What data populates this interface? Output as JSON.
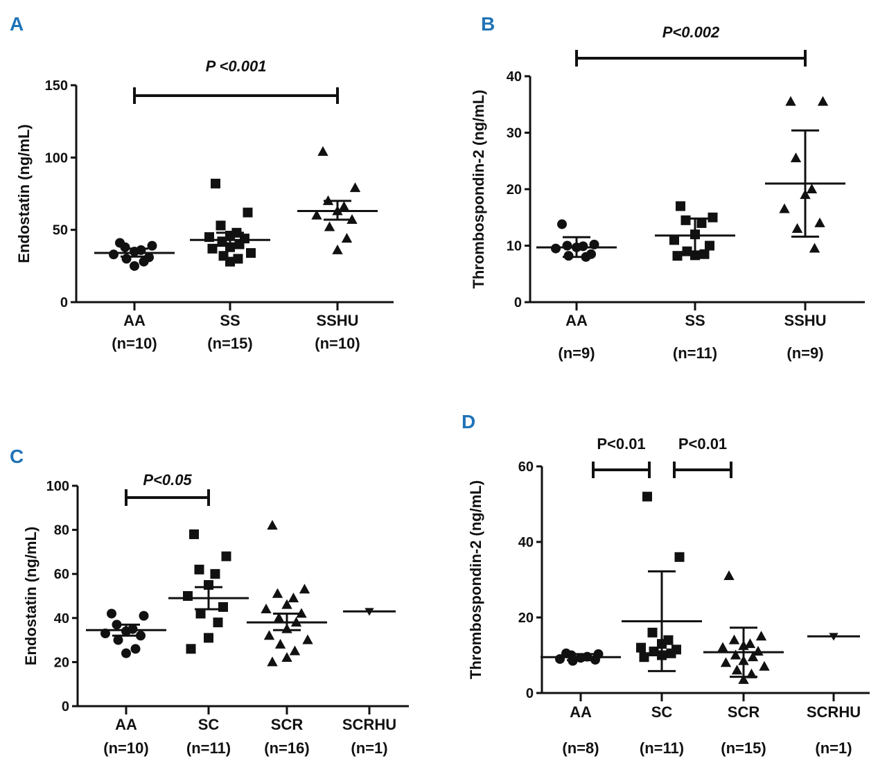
{
  "colors": {
    "ink": "#111111",
    "panel_letter": "#1f73b7"
  },
  "chart_data": [
    {
      "panel": "A",
      "type": "scatter",
      "ylabel": "Endostatin (ng/mL)",
      "ylim": [
        0,
        150
      ],
      "yticks": [
        0,
        50,
        100,
        150
      ],
      "significance": [
        {
          "from": 0,
          "to": 2,
          "label": "P <0.001",
          "italic": true
        }
      ],
      "groups": [
        {
          "name": "AA",
          "n": "(n=10)",
          "marker": "circle",
          "mean": 34,
          "err_low": 31.5,
          "err_high": 37,
          "values": [
            41,
            39,
            38,
            36,
            35,
            33,
            31,
            30,
            28,
            25
          ]
        },
        {
          "name": "SS",
          "n": "(n=15)",
          "marker": "square",
          "mean": 43,
          "err_low": 39,
          "err_high": 48,
          "values": [
            82,
            62,
            53,
            48,
            46,
            45,
            44,
            42,
            40,
            38,
            37,
            34,
            32,
            30,
            28
          ]
        },
        {
          "name": "SSHU",
          "n": "(n=10)",
          "marker": "triangle",
          "mean": 63,
          "err_low": 57,
          "err_high": 70,
          "values": [
            104,
            79,
            70,
            66,
            63,
            60,
            57,
            52,
            44,
            36
          ]
        }
      ]
    },
    {
      "panel": "B",
      "type": "scatter",
      "ylabel": "Thrombospondin-2 (ng/mL)",
      "ylim": [
        0,
        40
      ],
      "yticks": [
        0,
        10,
        20,
        30,
        40
      ],
      "significance": [
        {
          "from": 0,
          "to": 2,
          "label": "P<0.002",
          "italic": true
        }
      ],
      "groups": [
        {
          "name": "AA",
          "n": "(n=9)",
          "marker": "circle",
          "mean": 9.7,
          "err_low": 8.0,
          "err_high": 11.5,
          "values": [
            13.8,
            10.2,
            10.0,
            9.9,
            9.7,
            9.5,
            8.5,
            8.2,
            8.0
          ]
        },
        {
          "name": "SS",
          "n": "(n=11)",
          "marker": "square",
          "mean": 11.8,
          "err_low": 8.8,
          "err_high": 14.8,
          "values": [
            17.0,
            15.0,
            14.5,
            14.0,
            12.0,
            11.0,
            10.0,
            9.0,
            8.5,
            8.3,
            8.2
          ]
        },
        {
          "name": "SSHU",
          "n": "(n=9)",
          "marker": "triangle",
          "mean": 21.0,
          "err_low": 11.6,
          "err_high": 30.4,
          "values": [
            35.5,
            35.5,
            25.5,
            20.0,
            19.0,
            16.5,
            14.0,
            13.0,
            9.5
          ]
        }
      ]
    },
    {
      "panel": "C",
      "type": "scatter",
      "ylabel": "Endostatin (ng/mL)",
      "ylim": [
        0,
        100
      ],
      "yticks": [
        0,
        20,
        40,
        60,
        80,
        100
      ],
      "significance": [
        {
          "from": 0,
          "to": 1,
          "label": "P<0.05",
          "italic": true
        }
      ],
      "groups": [
        {
          "name": "AA",
          "n": "(n=10)",
          "marker": "circle",
          "mean": 34.5,
          "err_low": 32.0,
          "err_high": 37.0,
          "values": [
            42,
            41,
            37,
            35,
            34,
            33,
            32,
            30,
            26,
            24
          ]
        },
        {
          "name": "SC",
          "n": "(n=11)",
          "marker": "square",
          "mean": 49,
          "err_low": 44,
          "err_high": 54,
          "values": [
            78,
            68,
            62,
            60,
            55,
            50,
            45,
            42,
            38,
            31,
            26
          ]
        },
        {
          "name": "SCR",
          "n": "(n=16)",
          "marker": "triangle",
          "mean": 38,
          "err_low": 34.5,
          "err_high": 42,
          "values": [
            82,
            53,
            51,
            49,
            46,
            44,
            42,
            40,
            38,
            35,
            32,
            30,
            28,
            25,
            22,
            20
          ]
        },
        {
          "name": "SCRHU",
          "n": "(n=1)",
          "marker": "triangle-down",
          "mean": 43,
          "values": [
            43
          ]
        }
      ]
    },
    {
      "panel": "D",
      "type": "scatter",
      "ylabel": "Thrombospondin-2 (ng/mL)",
      "ylim": [
        0,
        60
      ],
      "yticks": [
        0,
        20,
        40,
        60
      ],
      "significance": [
        {
          "from": 0,
          "to": 1,
          "label": "P<0.01",
          "italic": false
        },
        {
          "from": 1,
          "to": 2,
          "label": "P<0.01",
          "italic": false
        }
      ],
      "groups": [
        {
          "name": "AA",
          "n": "(n=8)",
          "marker": "circle",
          "mean": 9.5,
          "err_low": 8.7,
          "err_high": 10.3,
          "values": [
            10.5,
            10.3,
            10.0,
            9.6,
            9.3,
            9.0,
            8.8,
            8.5
          ]
        },
        {
          "name": "SC",
          "n": "(n=11)",
          "marker": "square",
          "mean": 19,
          "err_low": 5.8,
          "err_high": 32.2,
          "values": [
            52,
            36,
            16,
            14,
            13,
            12,
            11.5,
            11,
            10.5,
            10,
            9.5
          ]
        },
        {
          "name": "SCR",
          "n": "(n=15)",
          "marker": "triangle",
          "mean": 10.8,
          "err_low": 4.3,
          "err_high": 17.3,
          "values": [
            31,
            15,
            14,
            13,
            12.5,
            12,
            11,
            10,
            9.5,
            8.5,
            8,
            7,
            6,
            5,
            3.5
          ]
        },
        {
          "name": "SCRHU",
          "n": "(n=1)",
          "marker": "triangle-down",
          "mean": 15,
          "values": [
            15
          ]
        }
      ]
    }
  ]
}
